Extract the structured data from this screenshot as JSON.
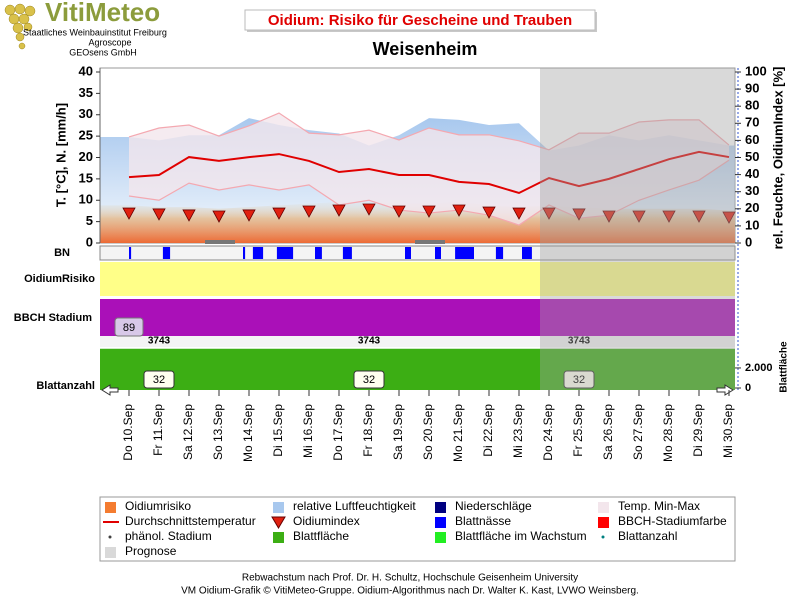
{
  "logo": {
    "name": "VitiMeteo",
    "lines": [
      "Staatliches Weinbauinstitut Freiburg",
      "Agroscope",
      "GEOsens GmbH"
    ]
  },
  "chart_data": {
    "type": "line",
    "title": "Oidium: Risiko für Gescheine und Trauben",
    "subtitle": "Weisenheim",
    "ylabel": "T. [°C], N. [mm/h]",
    "y2label": "rel. Feuchte, OidiumIndex [%]",
    "categories": [
      "Do 10.Sep",
      "Fr 11.Sep",
      "Sa 12.Sep",
      "So 13.Sep",
      "Mo 14.Sep",
      "Di 15.Sep",
      "Mi 16.Sep",
      "Do 17.Sep",
      "Fr 18.Sep",
      "Sa 19.Sep",
      "So 20.Sep",
      "Mo 21.Sep",
      "Di 22.Sep",
      "Mi 23.Sep",
      "Do 24.Sep",
      "Fr 25.Sep",
      "Sa 26.Sep",
      "So 27.Sep",
      "Mo 28.Sep",
      "Di 29.Sep",
      "Mi 30.Sep"
    ],
    "ylim": [
      0,
      40
    ],
    "yticks": [
      0,
      5,
      10,
      15,
      20,
      25,
      30,
      35,
      40
    ],
    "y2lim": [
      0,
      100
    ],
    "y2ticks": [
      0,
      10,
      20,
      30,
      40,
      50,
      60,
      70,
      80,
      90,
      100
    ],
    "bn_label": "BN",
    "panels": [
      {
        "label": "OidiumRisiko",
        "color": "#ffff88"
      },
      {
        "label": "BBCH Stadium",
        "color": "#aa10b8"
      }
    ],
    "leaf_area_label": "Blattfläche",
    "leaf_count_label": "Blattanzahl",
    "leaf_ylim": [
      0,
      3900
    ],
    "leaf_yticks": [
      0,
      {
        "value": 2000,
        "label": "2.000"
      }
    ],
    "series": [
      {
        "name": "Oidiumrisiko",
        "color": "#f47c30",
        "kind": "risk",
        "symbol": "square",
        "axis": "y2",
        "values": [
          22,
          21,
          21,
          20,
          21,
          22,
          23,
          24,
          24,
          23,
          23,
          24,
          22,
          21,
          22,
          21,
          20,
          20,
          20,
          20,
          19
        ]
      },
      {
        "name": "relative Luftfeuchtigkeit",
        "color": "#a8c8ee",
        "kind": "area",
        "symbol": "square",
        "axis": "y2",
        "values": [
          62,
          60,
          63,
          63,
          73,
          69,
          66,
          64,
          57,
          63,
          73,
          72,
          69,
          70,
          54,
          57,
          63,
          60,
          63,
          60,
          57
        ]
      },
      {
        "name": "Niederschläge",
        "color": "#000080",
        "kind": "bar",
        "symbol": "square",
        "values": [
          0,
          0,
          0,
          0,
          0,
          0,
          0,
          0,
          0,
          0,
          0,
          0,
          0,
          0,
          0,
          0,
          0,
          0,
          0,
          0,
          0
        ]
      },
      {
        "name": "Temp. Min-Max",
        "color": "#f3e6ec",
        "line_color": "#f4a8b0",
        "kind": "range",
        "symbol": "square",
        "max": [
          24.8,
          26.9,
          27.6,
          25.0,
          27.4,
          30.4,
          25.7,
          25.3,
          26.4,
          24.1,
          26.9,
          25.3,
          25.3,
          23.9,
          21.8,
          25.7,
          25.7,
          28.3,
          28.8,
          28.8,
          22.9
        ],
        "min": [
          11.0,
          10.0,
          14.0,
          12.4,
          13.6,
          12.4,
          13.6,
          8.9,
          10.0,
          7.7,
          7.0,
          7.7,
          6.5,
          4.2,
          8.9,
          5.8,
          6.5,
          10.0,
          12.4,
          14.7,
          19.4
        ]
      },
      {
        "name": "Durchschnittstemperatur",
        "color": "#e00000",
        "kind": "line",
        "symbol": "line",
        "values": [
          15.4,
          15.9,
          20.1,
          19.2,
          20.1,
          20.8,
          19.2,
          16.6,
          17.3,
          15.9,
          15.9,
          14.3,
          13.8,
          11.7,
          15.2,
          13.3,
          15.0,
          17.3,
          19.6,
          21.3,
          20.1
        ]
      },
      {
        "name": "Oidiumindex",
        "color": "#e02010",
        "kind": "triangles",
        "symbol": "triangle",
        "axis": "y2",
        "values": [
          17.5,
          17.0,
          16.4,
          15.8,
          16.4,
          17.5,
          18.7,
          19.3,
          19.9,
          18.7,
          18.7,
          19.3,
          18.1,
          17.5,
          17.5,
          17.0,
          15.8,
          15.8,
          15.8,
          15.8,
          15.2
        ]
      },
      {
        "name": "Blattnässe",
        "color": "#0000ff",
        "kind": "intervals",
        "symbol": "square",
        "intervals": [
          [
            0,
            0.07
          ],
          [
            1.13,
            1.37
          ],
          [
            3.8,
            3.87
          ],
          [
            4.13,
            4.47
          ],
          [
            4.93,
            5.47
          ],
          [
            6.2,
            6.43
          ],
          [
            7.13,
            7.43
          ],
          [
            9.2,
            9.4
          ],
          [
            10.2,
            10.4
          ],
          [
            10.87,
            11.5
          ],
          [
            12.23,
            12.47
          ],
          [
            13.1,
            13.43
          ]
        ]
      },
      {
        "name": "BBCH-Stadiumfarbe",
        "color": "#ff0000",
        "kind": "swatch",
        "symbol": "square"
      },
      {
        "name": "phänol. Stadium",
        "color": "#404040",
        "kind": "stage",
        "symbol": "dot",
        "values": [
          89,
          null,
          null,
          null,
          null,
          null,
          null,
          null,
          null,
          null,
          null,
          null,
          null,
          null,
          null,
          null,
          null,
          null,
          null,
          null,
          null
        ]
      },
      {
        "name": "Blattfläche",
        "color": "#3cae14",
        "kind": "leafarea",
        "symbol": "square",
        "values": [
          3743,
          3743,
          3743,
          3743,
          3743,
          3743,
          3743,
          3743,
          3743,
          3743,
          3743,
          3743,
          3743,
          3743,
          3743,
          3743,
          3743,
          3743,
          3743,
          3743,
          3743
        ],
        "value_labels": [
          null,
          "3743",
          null,
          null,
          null,
          null,
          null,
          null,
          "3743",
          null,
          null,
          null,
          null,
          null,
          null,
          "3743",
          null,
          null,
          null,
          null,
          null
        ]
      },
      {
        "name": "Blattfläche im Wachstum",
        "color": "#22ee22",
        "kind": "swatch",
        "symbol": "square"
      },
      {
        "name": "Blattanzahl",
        "color": "#008080",
        "kind": "leafcount",
        "symbol": "dot",
        "values": [
          32,
          32,
          32,
          32,
          32,
          32,
          32,
          32,
          32,
          32,
          32,
          32,
          32,
          32,
          32,
          32,
          32,
          32,
          32,
          32,
          32
        ],
        "value_labels": [
          null,
          "32",
          null,
          null,
          null,
          null,
          null,
          null,
          "32",
          null,
          null,
          null,
          null,
          null,
          null,
          "32",
          null,
          null,
          null,
          null,
          null
        ]
      },
      {
        "name": "Prognose",
        "color": "#a0a0a0",
        "kind": "forecast",
        "symbol": "square",
        "start_index": 14
      }
    ]
  },
  "footer": [
    "Rebwachstum nach Prof. Dr. H. Schultz, Hochschule Geisenheim University",
    "VM Oidium-Grafik © VitiMeteo-Gruppe. Oidium-Algorithmus nach Dr. Walter K. Kast, LVWO Weinsberg."
  ]
}
